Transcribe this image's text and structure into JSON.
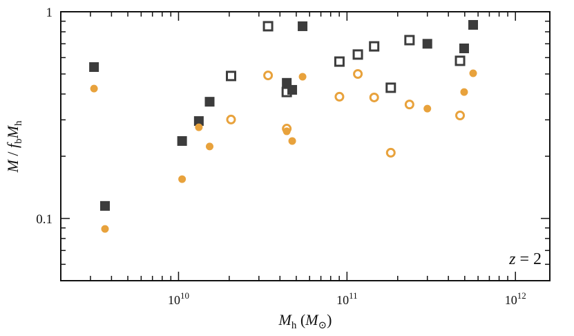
{
  "chart_data": {
    "type": "scatter",
    "xlabel_parts": [
      "M",
      "h",
      " (",
      "M",
      "⊙",
      ")"
    ],
    "ylabel_parts": [
      "M",
      " / ",
      "f",
      "b",
      "M",
      "h"
    ],
    "annotation_parts": [
      "z",
      " = 2"
    ],
    "xscale": "log",
    "yscale": "log",
    "xlim": [
      2000000000,
      1600000000000
    ],
    "ylim": [
      0.05,
      1
    ],
    "xticks": [
      {
        "value": 10000000000,
        "label": "10",
        "exponent": "10"
      },
      {
        "value": 100000000000,
        "label": "10",
        "exponent": "11"
      },
      {
        "value": 1000000000000,
        "label": "10",
        "exponent": "12"
      }
    ],
    "yticks": [
      0.1,
      1
    ],
    "xminorticks": [
      3000000000,
      4000000000,
      5000000000,
      6000000000,
      7000000000,
      8000000000,
      9000000000,
      20000000000,
      30000000000,
      40000000000,
      50000000000,
      60000000000,
      70000000000,
      80000000000,
      90000000000,
      200000000000,
      300000000000,
      400000000000,
      500000000000,
      600000000000,
      700000000000,
      800000000000,
      900000000000
    ],
    "yminorticks": [
      0.06,
      0.07,
      0.08,
      0.09,
      0.2,
      0.3,
      0.4,
      0.5,
      0.6,
      0.7,
      0.8,
      0.9
    ],
    "series": [
      {
        "marker": "square",
        "filled": true,
        "color": "#3c3c3c",
        "x": [
          3150000000,
          3660000000,
          10500000000,
          13200000000,
          15300000000,
          43900000000,
          47300000000,
          54500000000,
          300000000000,
          496000000000,
          561000000000
        ],
        "values": [
          0.54,
          0.115,
          0.237,
          0.296,
          0.367,
          0.453,
          0.419,
          0.851,
          0.7,
          0.665,
          0.864
        ]
      },
      {
        "marker": "square",
        "filled": false,
        "color": "#3c3c3c",
        "x": [
          34000000000,
          20500000000,
          43900000000,
          90200000000,
          116000000000,
          145000000000,
          182000000000,
          235000000000,
          469000000000
        ],
        "values": [
          0.851,
          0.489,
          0.409,
          0.574,
          0.621,
          0.68,
          0.429,
          0.729,
          0.579
        ]
      },
      {
        "marker": "circle",
        "filled": true,
        "color": "#e8a23c",
        "x": [
          3150000000,
          3660000000,
          10500000000,
          13200000000,
          15300000000,
          43900000000,
          47300000000,
          54500000000,
          300000000000,
          496000000000,
          561000000000
        ],
        "values": [
          0.425,
          0.089,
          0.155,
          0.276,
          0.223,
          0.264,
          0.237,
          0.485,
          0.34,
          0.409,
          0.504
        ]
      },
      {
        "marker": "circle",
        "filled": false,
        "color": "#e8a23c",
        "x": [
          34000000000,
          20500000000,
          43900000000,
          90200000000,
          116000000000,
          145000000000,
          182000000000,
          235000000000,
          469000000000
        ],
        "values": [
          0.492,
          0.301,
          0.272,
          0.388,
          0.5,
          0.385,
          0.208,
          0.356,
          0.315
        ]
      }
    ]
  }
}
